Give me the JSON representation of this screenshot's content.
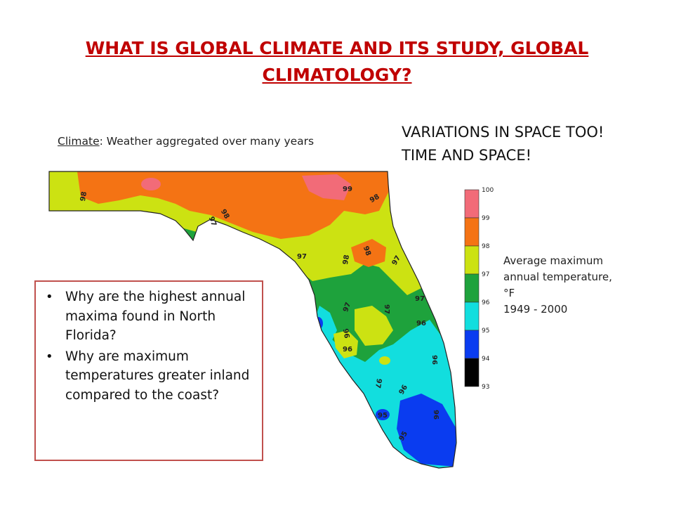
{
  "slide": {
    "title": "WHAT IS GLOBAL CLIMATE AND ITS STUDY, GLOBAL CLIMATOLOGY?",
    "climate_term": "Climate",
    "climate_definition": ": Weather aggregated over many years",
    "headline_line1": "VARIATIONS IN SPACE TOO!",
    "headline_line2": "TIME AND SPACE!"
  },
  "legend": {
    "description_line1": "Average maximum",
    "description_line2": "annual temperature,",
    "description_line3": "°F",
    "description_line4": "1949 - 2000",
    "ticks": [
      "100",
      "99",
      "98",
      "97",
      "96",
      "95",
      "94",
      "93"
    ],
    "bins": [
      {
        "range": "99-100",
        "color": "#f26b78"
      },
      {
        "range": "98-99",
        "color": "#f47314"
      },
      {
        "range": "97-98",
        "color": "#cce212"
      },
      {
        "range": "96-97",
        "color": "#1ea23c"
      },
      {
        "range": "95-96",
        "color": "#12dede"
      },
      {
        "range": "94-95",
        "color": "#0a3cf0"
      },
      {
        "range": "93-94",
        "color": "#000000"
      }
    ]
  },
  "map": {
    "contour_labels": [
      "98",
      "99",
      "98",
      "98",
      "97",
      "97",
      "98",
      "98",
      "97",
      "97",
      "97",
      "97",
      "96",
      "96",
      "96",
      "97",
      "96",
      "96",
      "95",
      "96",
      "95"
    ]
  },
  "questions": [
    "Why are the highest annual maxima found in North Florida?",
    "Why are maximum temperatures greater inland compared to the coast?"
  ]
}
